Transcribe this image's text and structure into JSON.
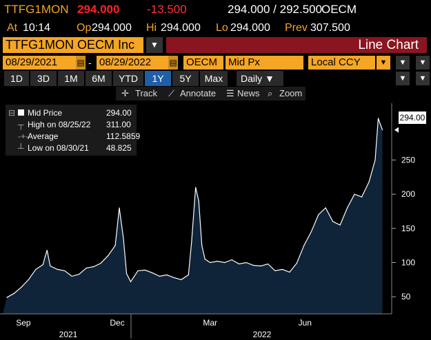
{
  "quote": {
    "ticker": "TTFG1MON",
    "last": "294.000",
    "change": "-13.500",
    "bid_ask": "294.000 / 292.500",
    "exchange": "OECM",
    "at_label": "At",
    "at_time": "10:14",
    "open_label": "Op",
    "open": "294.000",
    "high_label": "Hi",
    "high": "294.000",
    "low_label": "Lo",
    "low": "294.000",
    "prev_label": "Prev",
    "prev": "307.500"
  },
  "header": {
    "security": "TTFG1MON OECM Inc",
    "dropdown_icon": "▼",
    "chart_type": "Line Chart"
  },
  "fields": {
    "start_date": "08/29/2021",
    "end_date": "08/29/2022",
    "date_sep": "-",
    "source": "OECM",
    "field": "Mid Px",
    "currency": "Local CCY"
  },
  "periods": [
    "1D",
    "3D",
    "1M",
    "6M",
    "YTD",
    "1Y",
    "5Y",
    "Max"
  ],
  "active_period": "1Y",
  "frequency": "Daily ▼",
  "toolbar": {
    "track": "Track",
    "annotate": "Annotate",
    "news": "News",
    "zoom": "Zoom"
  },
  "legend": {
    "mid_label": "Mid Price",
    "mid_value": "294.00",
    "high_label": "High on 08/25/22",
    "high_value": "311.00",
    "avg_label": "Average",
    "avg_value": "112.5859",
    "low_label": "Low on 08/30/21",
    "low_value": "48.825"
  },
  "last_price_label": "294.00",
  "chart_data": {
    "type": "area",
    "series": [
      {
        "name": "Mid Price",
        "x": [
          "2021-08-30",
          "2021-09-06",
          "2021-09-13",
          "2021-09-20",
          "2021-09-27",
          "2021-10-04",
          "2021-10-06",
          "2021-10-08",
          "2021-10-11",
          "2021-10-18",
          "2021-10-25",
          "2021-11-01",
          "2021-11-08",
          "2021-11-15",
          "2021-11-22",
          "2021-11-29",
          "2021-12-06",
          "2021-12-13",
          "2021-12-17",
          "2021-12-21",
          "2021-12-24",
          "2021-12-28",
          "2022-01-04",
          "2022-01-11",
          "2022-01-18",
          "2022-01-25",
          "2022-02-01",
          "2022-02-08",
          "2022-02-15",
          "2022-02-22",
          "2022-02-25",
          "2022-03-01",
          "2022-03-04",
          "2022-03-07",
          "2022-03-10",
          "2022-03-15",
          "2022-03-22",
          "2022-03-29",
          "2022-04-05",
          "2022-04-12",
          "2022-04-19",
          "2022-04-26",
          "2022-05-03",
          "2022-05-10",
          "2022-05-17",
          "2022-05-24",
          "2022-05-31",
          "2022-06-07",
          "2022-06-14",
          "2022-06-21",
          "2022-06-28",
          "2022-07-05",
          "2022-07-12",
          "2022-07-19",
          "2022-07-26",
          "2022-08-02",
          "2022-08-09",
          "2022-08-16",
          "2022-08-22",
          "2022-08-25",
          "2022-08-29"
        ],
        "values": [
          49,
          55,
          64,
          75,
          90,
          97,
          108,
          118,
          95,
          90,
          88,
          80,
          83,
          92,
          94,
          99,
          110,
          125,
          180,
          135,
          84,
          72,
          88,
          89,
          85,
          80,
          82,
          78,
          75,
          82,
          130,
          210,
          190,
          125,
          105,
          100,
          102,
          100,
          104,
          98,
          100,
          96,
          95,
          98,
          88,
          90,
          86,
          99,
          125,
          145,
          170,
          180,
          160,
          155,
          180,
          200,
          196,
          218,
          250,
          311,
          294
        ]
      }
    ],
    "xticks": [
      "Sep",
      "Dec",
      "Mar",
      "Jun"
    ],
    "year_labels": [
      "2021",
      "2022"
    ],
    "yticks": [
      50,
      100,
      150,
      200,
      250
    ],
    "ylim": [
      25,
      325
    ],
    "xlim": [
      "2021-08-26",
      "2022-08-30"
    ],
    "grid": false,
    "colors": {
      "fill": "#0f2339",
      "line": "#ffffff"
    }
  }
}
